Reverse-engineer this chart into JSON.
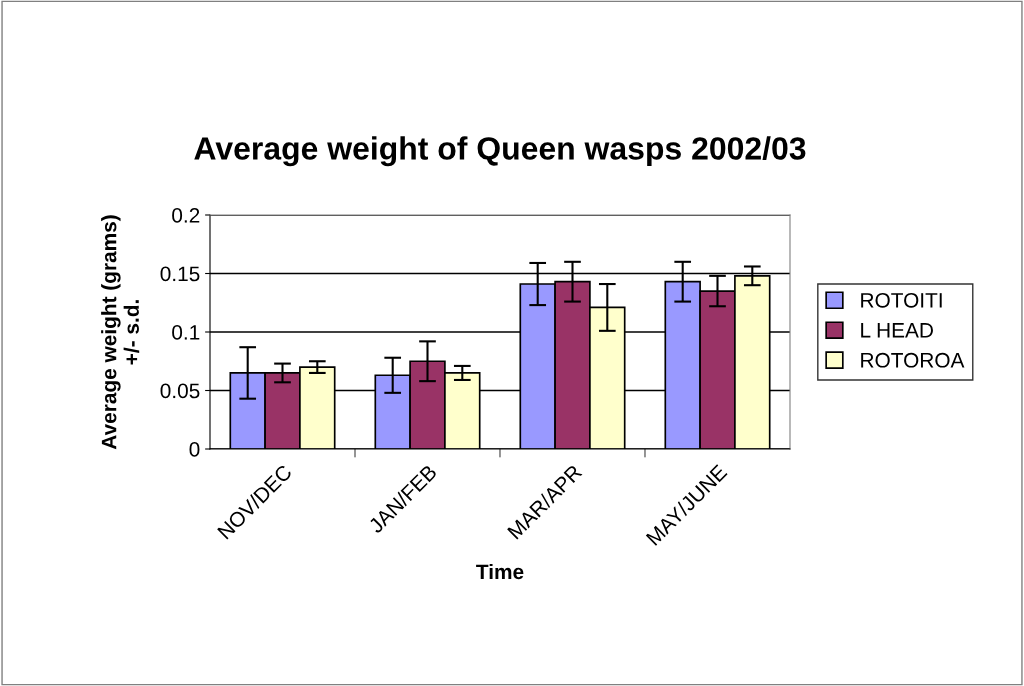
{
  "chart_data": {
    "type": "bar",
    "title": "Average weight of Queen wasps 2002/03",
    "xlabel": "Time",
    "ylabel": "Average weight (grams)\n+/- s.d.",
    "categories": [
      "NOV/DEC",
      "JAN/FEB",
      "MAR/APR",
      "MAY/JUNE"
    ],
    "series": [
      {
        "name": "ROTOITI",
        "color": "#9999ff",
        "values": [
          0.065,
          0.063,
          0.141,
          0.143
        ],
        "errors": [
          0.022,
          0.015,
          0.018,
          0.017
        ]
      },
      {
        "name": "L HEAD",
        "color": "#993366",
        "values": [
          0.065,
          0.075,
          0.143,
          0.135
        ],
        "errors": [
          0.008,
          0.017,
          0.017,
          0.013
        ]
      },
      {
        "name": "ROTOROA",
        "color": "#ffffcc",
        "values": [
          0.07,
          0.065,
          0.121,
          0.148
        ],
        "errors": [
          0.005,
          0.006,
          0.02,
          0.008
        ]
      }
    ],
    "ylim": [
      0,
      0.2
    ],
    "yticks": [
      0,
      0.05,
      0.1,
      0.15,
      0.2
    ],
    "grid": "y",
    "legend": "right"
  }
}
